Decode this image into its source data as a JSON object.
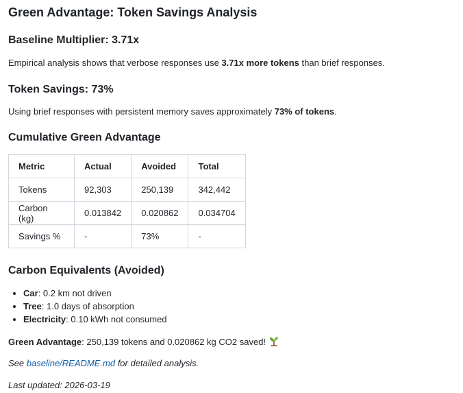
{
  "title": "Green Advantage: Token Savings Analysis",
  "baseline": {
    "heading": "Baseline Multiplier: 3.71x",
    "text_before": "Empirical analysis shows that verbose responses use ",
    "text_bold": "3.71x more tokens",
    "text_after": " than brief responses."
  },
  "savings": {
    "heading": "Token Savings: 73%",
    "text_before": "Using brief responses with persistent memory saves approximately ",
    "text_bold": "73% of tokens",
    "text_after": "."
  },
  "cumulative": {
    "heading": "Cumulative Green Advantage",
    "columns": [
      "Metric",
      "Actual",
      "Avoided",
      "Total"
    ],
    "rows": [
      [
        "Tokens",
        "92,303",
        "250,139",
        "342,442"
      ],
      [
        "Carbon (kg)",
        "0.013842",
        "0.020862",
        "0.034704"
      ],
      [
        "Savings %",
        "-",
        "73%",
        "-"
      ]
    ]
  },
  "carbon_equivalents": {
    "heading": "Carbon Equivalents (Avoided)",
    "items": [
      {
        "label": "Car",
        "text": ": 0.2 km not driven"
      },
      {
        "label": "Tree",
        "text": ": 1.0 days of absorption"
      },
      {
        "label": "Electricity",
        "text": ": 0.10 kWh not consumed"
      }
    ]
  },
  "green_advantage": {
    "label": "Green Advantage",
    "text": ": 250,139 tokens and 0.020862 kg CO2 saved!",
    "icon": "seedling-icon"
  },
  "see_also": {
    "before": "See ",
    "link_text": "baseline/README.md",
    "after": " for detailed analysis."
  },
  "last_updated": "Last updated: 2026-03-19"
}
